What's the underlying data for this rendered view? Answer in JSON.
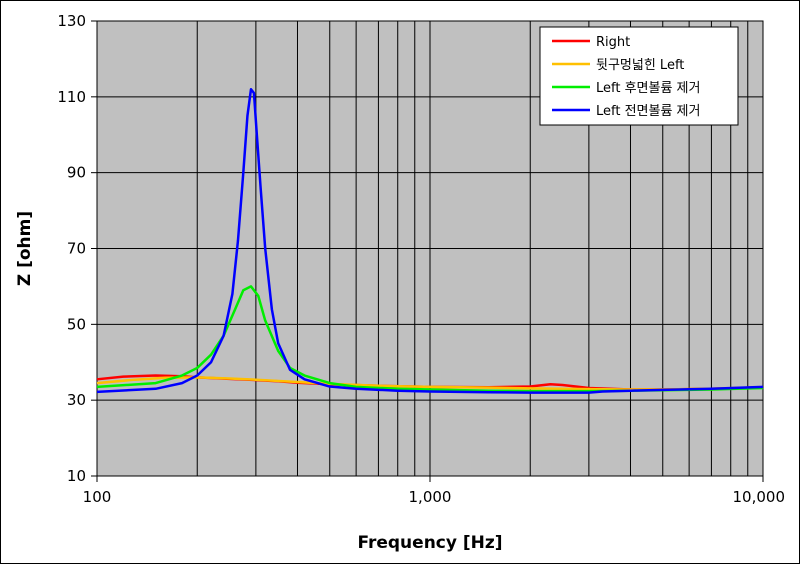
{
  "chart_data": {
    "type": "line",
    "xlabel": "Frequency [Hz]",
    "ylabel": "Z [ohm]",
    "xscale": "log",
    "xlim": [
      100,
      10000
    ],
    "ylim": [
      10,
      130
    ],
    "x_ticks": [
      100,
      1000,
      10000
    ],
    "x_tick_labels": [
      "100",
      "1,000",
      "10,000"
    ],
    "y_ticks": [
      10,
      30,
      50,
      70,
      90,
      110,
      130
    ],
    "y_tick_labels": [
      "10",
      "30",
      "50",
      "70",
      "90",
      "110",
      "130"
    ],
    "grid": true,
    "legend_position": "top-right",
    "series": [
      {
        "name": "Right",
        "color": "#ff0000",
        "x": [
          100,
          120,
          150,
          180,
          200,
          250,
          300,
          350,
          400,
          500,
          700,
          1000,
          1500,
          2000,
          2300,
          2500,
          3000,
          4000,
          5000,
          7000,
          10000
        ],
        "y": [
          35.5,
          36.2,
          36.5,
          36.3,
          36.0,
          35.6,
          35.3,
          35.0,
          34.6,
          34.2,
          33.8,
          33.5,
          33.4,
          33.6,
          34.2,
          34.0,
          33.2,
          32.8,
          32.8,
          33.0,
          33.4
        ]
      },
      {
        "name": "뒷구멍넓힌 Left",
        "color": "#ffc000",
        "x": [
          100,
          130,
          160,
          200,
          250,
          300,
          400,
          500,
          700,
          1000,
          1500,
          2000,
          3000,
          4000,
          5000,
          7000,
          10000
        ],
        "y": [
          34.5,
          35.4,
          35.9,
          36.0,
          35.7,
          35.4,
          34.8,
          34.3,
          33.8,
          33.5,
          33.3,
          33.1,
          32.9,
          32.8,
          32.8,
          33.0,
          33.4
        ]
      },
      {
        "name": "Left 후면볼륨 제거",
        "color": "#00ee00",
        "x": [
          100,
          150,
          180,
          200,
          220,
          240,
          260,
          275,
          290,
          305,
          320,
          350,
          380,
          420,
          500,
          600,
          800,
          1000,
          1500,
          2000,
          3000,
          4000,
          5000,
          7000,
          10000
        ],
        "y": [
          33.5,
          34.5,
          36.5,
          38.5,
          42.0,
          47.0,
          54.0,
          59.0,
          60.0,
          57.5,
          51.0,
          43.0,
          38.5,
          36.5,
          34.5,
          33.5,
          33.0,
          32.8,
          32.5,
          32.4,
          32.4,
          32.5,
          32.6,
          32.8,
          33.2
        ]
      },
      {
        "name": "Left 전면볼륨 제거",
        "color": "#0000ff",
        "x": [
          100,
          150,
          180,
          200,
          220,
          240,
          255,
          265,
          275,
          283,
          290,
          296,
          302,
          310,
          320,
          335,
          350,
          380,
          420,
          500,
          600,
          800,
          1000,
          1500,
          2000,
          3000,
          3300,
          4000,
          5000,
          7000,
          10000
        ],
        "y": [
          32.2,
          33.0,
          34.5,
          36.5,
          40.0,
          47.0,
          58.0,
          72.0,
          90.0,
          105.0,
          112.0,
          111.0,
          100.0,
          86.0,
          70.0,
          54.0,
          45.0,
          38.0,
          35.5,
          33.6,
          33.0,
          32.5,
          32.3,
          32.1,
          32.0,
          32.0,
          32.3,
          32.5,
          32.7,
          33.0,
          33.5
        ]
      }
    ]
  }
}
